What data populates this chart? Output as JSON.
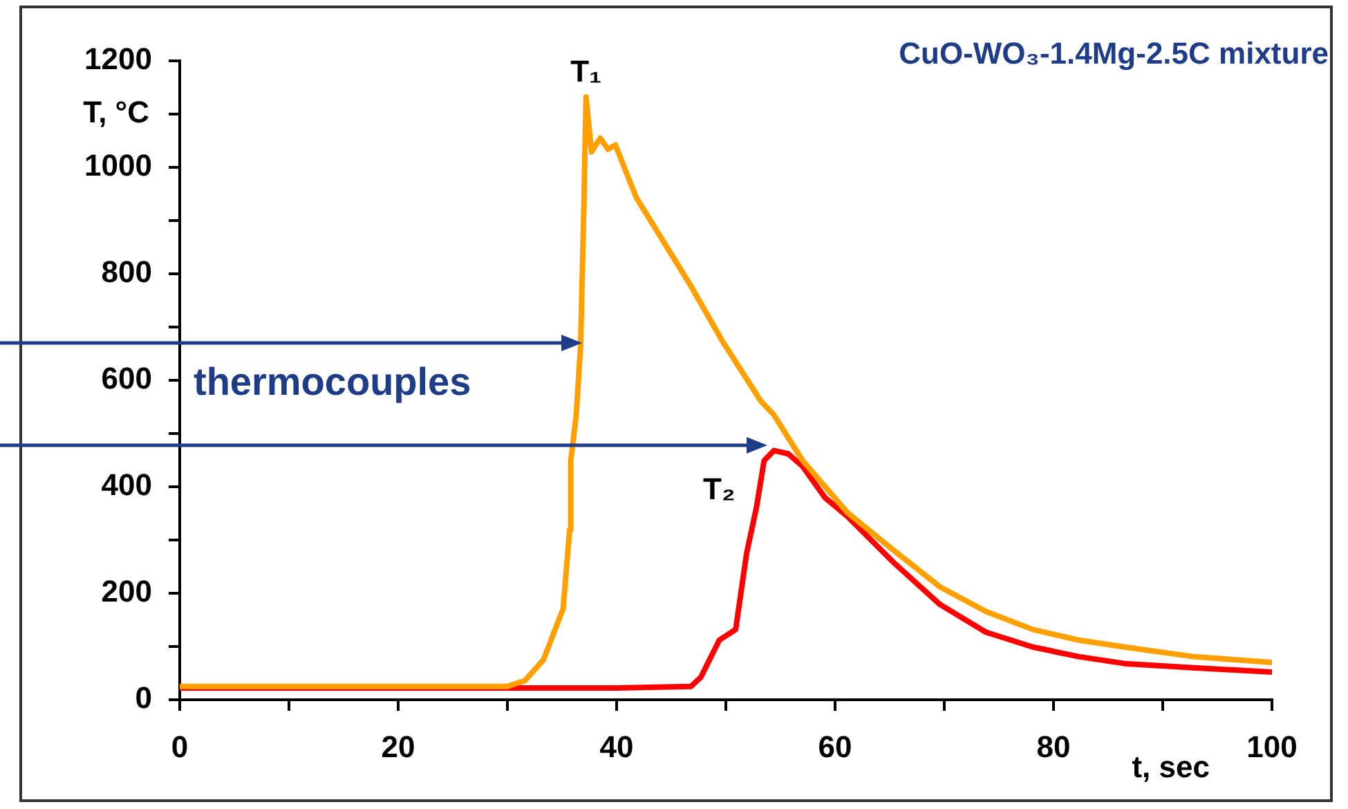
{
  "chart_data": {
    "type": "line",
    "title": "CuO-WO₃-1.4Mg-2.5C mixture",
    "xlabel": "t, sec",
    "ylabel": "T, °C",
    "annotations": [
      "thermocouples"
    ],
    "xlim": [
      0,
      100
    ],
    "xticks": [
      0,
      {
        "value": 10,
        "label": null
      },
      20,
      {
        "value": 30,
        "label": null
      },
      40,
      {
        "value": 50,
        "label": null
      },
      60,
      {
        "value": 70,
        "label": null
      },
      80,
      {
        "value": 90,
        "label": null
      },
      100
    ],
    "ylim": [
      0,
      1200
    ],
    "yticks": [
      0,
      {
        "value": 100,
        "label": null
      },
      200,
      {
        "value": 300,
        "label": null
      },
      400,
      {
        "value": 500,
        "label": null
      },
      600,
      {
        "value": 700,
        "label": null
      },
      800,
      {
        "value": 900,
        "label": null
      },
      1000,
      {
        "value": 1100,
        "label": null
      },
      1200
    ],
    "grid": false,
    "legend": false,
    "marker": "none",
    "line_style": "solid",
    "series": [
      {
        "name": "T₁",
        "color": "#ffa000",
        "x": [
          0,
          10,
          20,
          30,
          31.6,
          33.3,
          35.1,
          35.7,
          35.8,
          36.3,
          36.7,
          37.0,
          37.2,
          37.7,
          38.5,
          39.2,
          39.9,
          40.5,
          41.8,
          44.7,
          46.8,
          49.7,
          53.2,
          54.4,
          57.0,
          61.1,
          65.4,
          69.6,
          73.8,
          78.1,
          82.3,
          86.5,
          92.8,
          100
        ],
        "values": [
          25,
          25,
          25,
          25,
          36,
          75,
          171,
          319,
          449,
          535,
          665,
          925,
          1132,
          1029,
          1055,
          1034,
          1042,
          1010,
          943,
          847,
          777,
          673,
          561,
          535,
          450,
          352,
          280,
          212,
          166,
          132,
          112,
          99,
          81,
          70
        ]
      },
      {
        "name": "T₂",
        "color": "#ff0000",
        "x": [
          0,
          10,
          20,
          30,
          40,
          46.8,
          47.7,
          49.4,
          50.9,
          51.9,
          52.8,
          53.5,
          54.4,
          55.7,
          57.0,
          59.1,
          61.1,
          65.4,
          69.6,
          73.8,
          78.1,
          82.3,
          86.5,
          92.8,
          100
        ],
        "values": [
          22,
          22,
          22,
          22,
          22,
          25,
          42,
          112,
          132,
          275,
          361,
          449,
          468,
          462,
          439,
          379,
          345,
          257,
          179,
          127,
          99,
          81,
          68,
          60,
          52
        ]
      }
    ]
  }
}
